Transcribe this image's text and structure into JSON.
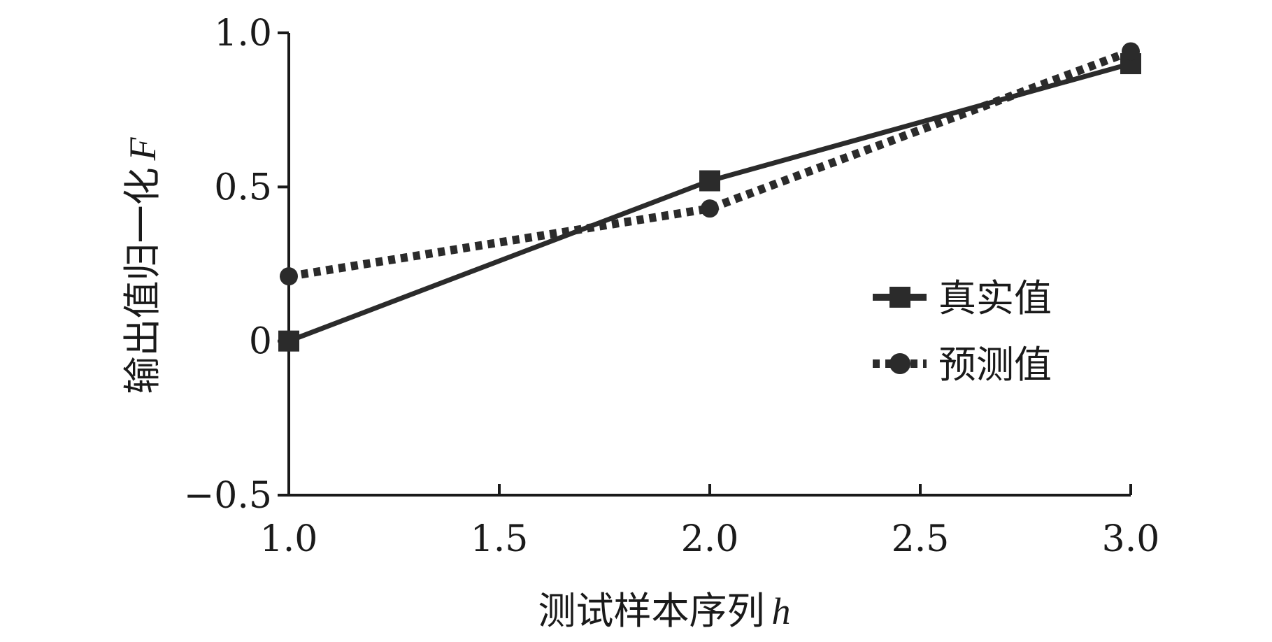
{
  "chart_data": {
    "type": "line",
    "xlabel": "测试样本序列",
    "xlabel_var": "h",
    "ylabel": "输出值归一化",
    "ylabel_var": "F",
    "xlim": [
      1.0,
      3.0
    ],
    "ylim": [
      -0.5,
      1.0
    ],
    "x_ticks": [
      "1.0",
      "1.5",
      "2.0",
      "2.5",
      "3.0"
    ],
    "y_ticks": [
      "−0.5",
      "0",
      "0.5",
      "1.0"
    ],
    "x_tick_values": [
      1.0,
      1.5,
      2.0,
      2.5,
      3.0
    ],
    "y_tick_values": [
      -0.5,
      0,
      0.5,
      1.0
    ],
    "legend_position": "right",
    "series": [
      {
        "name": "真实值",
        "x": [
          1.0,
          2.0,
          3.0
        ],
        "values": [
          0.0,
          0.52,
          0.9
        ],
        "style": "solid",
        "marker": "square",
        "color": "#2b2b2b"
      },
      {
        "name": "预测值",
        "x": [
          1.0,
          2.0,
          3.0
        ],
        "values": [
          0.21,
          0.43,
          0.94
        ],
        "style": "dotted",
        "marker": "circle",
        "color": "#2b2b2b"
      }
    ]
  }
}
